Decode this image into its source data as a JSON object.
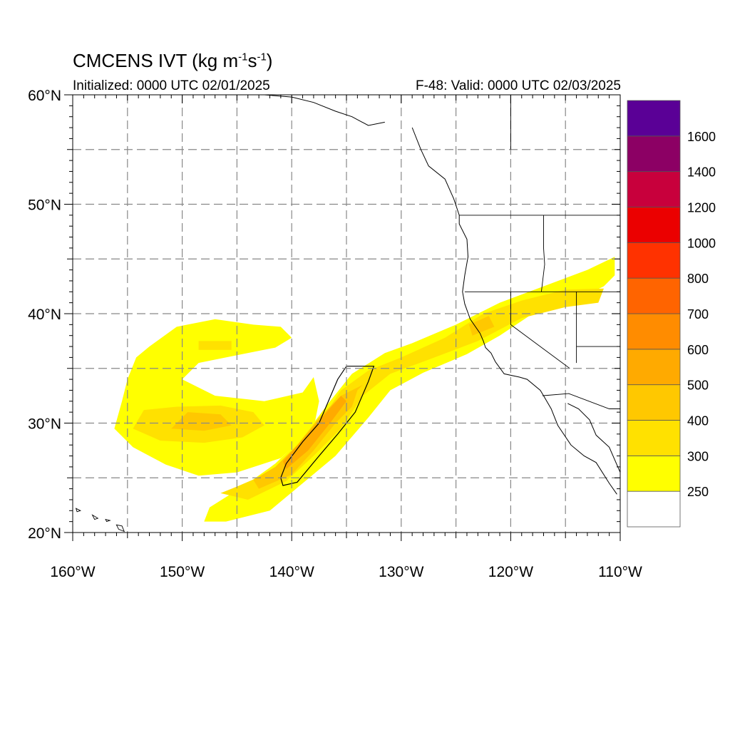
{
  "header": {
    "title_main": "CMCENS IVT (kg m",
    "title_sup1": "-1",
    "title_mid": "s",
    "title_sup2": "-1",
    "title_end": ")",
    "initialized": "Initialized: 0000 UTC 02/01/2025",
    "valid": "F-48: Valid: 0000 UTC 02/03/2025"
  },
  "map": {
    "lon_range": [
      -160,
      -110
    ],
    "lat_range": [
      20,
      60
    ],
    "lat_ticks": [
      {
        "value": 60,
        "label": "60°N"
      },
      {
        "value": 50,
        "label": "50°N"
      },
      {
        "value": 40,
        "label": "40°N"
      },
      {
        "value": 30,
        "label": "30°N"
      },
      {
        "value": 20,
        "label": "20°N"
      }
    ],
    "lon_ticks": [
      {
        "value": -160,
        "label": "160°W"
      },
      {
        "value": -150,
        "label": "150°W"
      },
      {
        "value": -140,
        "label": "140°W"
      },
      {
        "value": -130,
        "label": "130°W"
      },
      {
        "value": -120,
        "label": "120°W"
      },
      {
        "value": -110,
        "label": "110°W"
      }
    ],
    "grid_dashed": true,
    "grid_spacing_deg": 5
  },
  "colorbar": {
    "levels": [
      "250",
      "300",
      "400",
      "500",
      "600",
      "700",
      "800",
      "1000",
      "1200",
      "1400",
      "1600"
    ],
    "colors": [
      "#ffffff",
      "#ffff00",
      "#ffe100",
      "#ffc800",
      "#ffaa00",
      "#ff8c00",
      "#ff6400",
      "#ff3200",
      "#eb0000",
      "#c8003c",
      "#8c0064",
      "#5a0096"
    ]
  },
  "ivt_regions": [
    {
      "level": 1,
      "name": "main-river",
      "poly": [
        [
          -146,
          21
        ],
        [
          -142,
          22
        ],
        [
          -139,
          24.5
        ],
        [
          -136,
          27
        ],
        [
          -133,
          30.5
        ],
        [
          -131,
          33
        ],
        [
          -128,
          34.6
        ],
        [
          -124,
          36.3
        ],
        [
          -121,
          38
        ],
        [
          -118,
          40
        ],
        [
          -114,
          41.3
        ],
        [
          -111.5,
          42.5
        ],
        [
          -110.5,
          43.5
        ],
        [
          -110.5,
          45.2
        ],
        [
          -113,
          44
        ],
        [
          -117,
          42.5
        ],
        [
          -121,
          41
        ],
        [
          -125,
          39
        ],
        [
          -129,
          37.3
        ],
        [
          -131.5,
          36.4
        ],
        [
          -134.5,
          34.5
        ],
        [
          -136.5,
          32
        ],
        [
          -139,
          28.7
        ],
        [
          -141.5,
          26.3
        ],
        [
          -144,
          24.5
        ],
        [
          -147.5,
          22.3
        ],
        [
          -148,
          21
        ]
      ]
    },
    {
      "level": 1,
      "name": "western-lobe",
      "poly": [
        [
          -153,
          37
        ],
        [
          -150.5,
          38.8
        ],
        [
          -147,
          39.5
        ],
        [
          -143.5,
          39
        ],
        [
          -141,
          38.8
        ],
        [
          -140,
          37.8
        ],
        [
          -141.5,
          36.9
        ],
        [
          -145,
          36.2
        ],
        [
          -148.5,
          35.5
        ],
        [
          -150,
          34
        ],
        [
          -147,
          32.5
        ],
        [
          -142.5,
          32
        ],
        [
          -139,
          32.8
        ],
        [
          -138,
          34.2
        ],
        [
          -137.5,
          32
        ],
        [
          -138,
          29.5
        ],
        [
          -141,
          26.8
        ],
        [
          -145,
          25.5
        ],
        [
          -148.5,
          25.2
        ],
        [
          -151.5,
          26.2
        ],
        [
          -154.5,
          27.8
        ],
        [
          -156.2,
          29.5
        ],
        [
          -155.5,
          32
        ],
        [
          -155,
          34
        ],
        [
          -154.2,
          36
        ]
      ]
    },
    {
      "level": 2,
      "name": "main-river-core",
      "poly": [
        [
          -144,
          23
        ],
        [
          -140.5,
          24.7
        ],
        [
          -138,
          27
        ],
        [
          -135.5,
          29.5
        ],
        [
          -133.5,
          32.5
        ],
        [
          -131,
          34.5
        ],
        [
          -127.5,
          35.8
        ],
        [
          -123,
          37.5
        ],
        [
          -119,
          39.6
        ],
        [
          -115,
          40.6
        ],
        [
          -112,
          41
        ],
        [
          -111.5,
          42.3
        ],
        [
          -115,
          42.2
        ],
        [
          -119,
          41.2
        ],
        [
          -122.5,
          40
        ],
        [
          -126,
          37.8
        ],
        [
          -130,
          36
        ],
        [
          -133,
          34.8
        ],
        [
          -135.5,
          33
        ],
        [
          -137.5,
          30
        ],
        [
          -139.5,
          27.5
        ],
        [
          -142,
          25.5
        ],
        [
          -145,
          24.2
        ],
        [
          -146.5,
          23.6
        ]
      ]
    },
    {
      "level": 2,
      "name": "western-core",
      "poly": [
        [
          -154.5,
          29.5
        ],
        [
          -152,
          28.4
        ],
        [
          -148,
          28.2
        ],
        [
          -144.5,
          28.7
        ],
        [
          -142.5,
          29.8
        ],
        [
          -143.5,
          31
        ],
        [
          -146.5,
          31.6
        ],
        [
          -150.5,
          31.5
        ],
        [
          -153.5,
          31.2
        ]
      ]
    },
    {
      "level": 2,
      "name": "western-upper-core",
      "poly": [
        [
          -148.5,
          37.5
        ],
        [
          -145.5,
          37.5
        ],
        [
          -145.5,
          36.7
        ],
        [
          -148.5,
          36.7
        ]
      ]
    },
    {
      "level": 3,
      "name": "core-500",
      "poly": [
        [
          -143,
          24
        ],
        [
          -140,
          25.3
        ],
        [
          -138,
          27.5
        ],
        [
          -136,
          30
        ],
        [
          -134.5,
          31.5
        ],
        [
          -134,
          33
        ],
        [
          -133.5,
          33.5
        ],
        [
          -135.5,
          32.5
        ],
        [
          -137.5,
          30.5
        ],
        [
          -139.5,
          28
        ],
        [
          -141.5,
          26
        ],
        [
          -143.5,
          24.8
        ]
      ]
    },
    {
      "level": 3,
      "name": "coast-500",
      "poly": [
        [
          -123.5,
          38
        ],
        [
          -121.5,
          38.8
        ],
        [
          -122,
          39.8
        ],
        [
          -123.8,
          39
        ]
      ]
    },
    {
      "level": 3,
      "name": "western-500",
      "poly": [
        [
          -151,
          29.5
        ],
        [
          -148,
          29.3
        ],
        [
          -145.5,
          29.8
        ],
        [
          -146.5,
          30.8
        ],
        [
          -149.5,
          31
        ]
      ]
    },
    {
      "level": 4,
      "name": "core-600",
      "poly": [
        [
          -140.5,
          25.8
        ],
        [
          -138.5,
          27.5
        ],
        [
          -136.5,
          30
        ],
        [
          -135,
          32
        ],
        [
          -135.5,
          32.5
        ],
        [
          -137,
          30.8
        ],
        [
          -139,
          28.5
        ],
        [
          -140.8,
          26.5
        ]
      ]
    }
  ],
  "outline_box": [
    [
      -140.8,
      24.3
    ],
    [
      -139.5,
      24.6
    ],
    [
      -137.5,
      27
    ],
    [
      -135.8,
      29
    ],
    [
      -134.2,
      31
    ],
    [
      -133,
      33.8
    ],
    [
      -132.5,
      35.2
    ],
    [
      -135,
      35.2
    ],
    [
      -135.8,
      34
    ],
    [
      -137.5,
      30
    ],
    [
      -139,
      28.3
    ],
    [
      -140.5,
      26.3
    ],
    [
      -141,
      25
    ]
  ],
  "coastline": [
    [
      -131.5,
      57.5
    ],
    [
      -133,
      57.2
    ],
    [
      -134.5,
      58
    ],
    [
      -136,
      58.5
    ],
    [
      -138,
      59.3
    ],
    [
      -140,
      59.8
    ],
    [
      -142.5,
      60
    ]
  ],
  "coastline2": [
    [
      -129,
      57
    ],
    [
      -128.2,
      55
    ],
    [
      -127.5,
      53.5
    ],
    [
      -126,
      52.3
    ],
    [
      -125.2,
      50.5
    ],
    [
      -124.7,
      49
    ],
    [
      -124.7,
      48.2
    ],
    [
      -124,
      46.8
    ],
    [
      -123.9,
      45.2
    ],
    [
      -124.2,
      43.5
    ],
    [
      -124.4,
      42
    ],
    [
      -124.2,
      40.9
    ],
    [
      -123.7,
      39.5
    ],
    [
      -122.8,
      38.2
    ],
    [
      -122.5,
      37.5
    ],
    [
      -122.3,
      36.9
    ],
    [
      -121.8,
      36.4
    ],
    [
      -121.4,
      35.6
    ],
    [
      -120.6,
      34.5
    ],
    [
      -119.2,
      34.2
    ],
    [
      -118.5,
      34
    ],
    [
      -117.3,
      33
    ],
    [
      -117,
      32.5
    ],
    [
      -116.3,
      31.3
    ],
    [
      -115.7,
      29.8
    ],
    [
      -114.5,
      28
    ],
    [
      -113.3,
      27
    ],
    [
      -112.2,
      26.4
    ],
    [
      -111,
      24.5
    ],
    [
      -110.3,
      23.5
    ]
  ],
  "gulf_coast": [
    [
      -114.8,
      31.8
    ],
    [
      -113.8,
      31.3
    ],
    [
      -112.8,
      30.3
    ],
    [
      -112.2,
      28.9
    ],
    [
      -111,
      27.8
    ],
    [
      -110,
      25.5
    ],
    [
      -110,
      24
    ]
  ],
  "borders": [
    [
      [
        -124.7,
        49
      ],
      [
        -110,
        49
      ]
    ],
    [
      [
        -124.2,
        42
      ],
      [
        -110,
        42
      ]
    ],
    [
      [
        -120,
        42
      ],
      [
        -120,
        39
      ],
      [
        -114.6,
        35
      ]
    ],
    [
      [
        -117,
        49
      ],
      [
        -117,
        46
      ],
      [
        -116.9,
        44.5
      ],
      [
        -117.2,
        42
      ]
    ],
    [
      [
        -114,
        42
      ],
      [
        -114,
        35.5
      ]
    ],
    [
      [
        -117.1,
        32.5
      ],
      [
        -114.7,
        32.7
      ],
      [
        -111,
        31.3
      ],
      [
        -110,
        31.3
      ]
    ],
    [
      [
        -114,
        37
      ],
      [
        -110,
        37
      ]
    ],
    [
      [
        -120,
        60
      ],
      [
        -120,
        55
      ]
    ]
  ],
  "islands": [
    [
      [
        -156,
        20.7
      ],
      [
        -155.8,
        20.3
      ],
      [
        -155.3,
        20.1
      ],
      [
        -155.5,
        20.6
      ]
    ],
    [
      [
        -158.2,
        21.6
      ],
      [
        -157.7,
        21.3
      ],
      [
        -158,
        21.2
      ]
    ],
    [
      [
        -159.7,
        22.2
      ],
      [
        -159.3,
        22
      ],
      [
        -159.6,
        21.9
      ]
    ],
    [
      [
        -157,
        21.2
      ],
      [
        -156.6,
        21.1
      ],
      [
        -156.9,
        21
      ]
    ]
  ]
}
